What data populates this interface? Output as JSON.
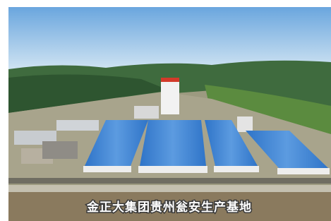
{
  "caption": "金正大集团贵州瓮安生产基地"
}
